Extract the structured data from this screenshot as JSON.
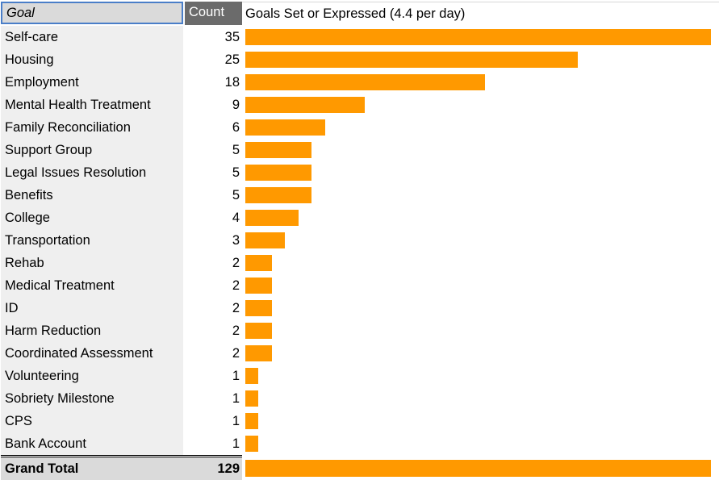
{
  "header": {
    "goal_label": "Goal",
    "count_label": "Count",
    "chart_title": "Goals Set or Expressed (4.4 per day)"
  },
  "total": {
    "label": "Grand Total",
    "count": "129"
  },
  "colors": {
    "bar": "#ff9900",
    "header_count_bg": "#6b6b6b",
    "selected_border": "#4a7ec8"
  },
  "chart_data": {
    "type": "bar",
    "orientation": "horizontal",
    "title": "Goals Set or Expressed (4.4 per day)",
    "categories": [
      "Self-care",
      "Housing",
      "Employment",
      "Mental Health Treatment",
      "Family Reconciliation",
      "Support Group",
      "Legal Issues Resolution",
      "Benefits",
      "College",
      "Transportation",
      "Rehab",
      "Medical Treatment",
      "ID",
      "Harm Reduction",
      "Coordinated Assessment",
      "Volunteering",
      "Sobriety Milestone",
      "CPS",
      "Bank Account"
    ],
    "values": [
      35,
      25,
      18,
      9,
      6,
      5,
      5,
      5,
      4,
      3,
      2,
      2,
      2,
      2,
      2,
      1,
      1,
      1,
      1
    ],
    "total": 129
  }
}
